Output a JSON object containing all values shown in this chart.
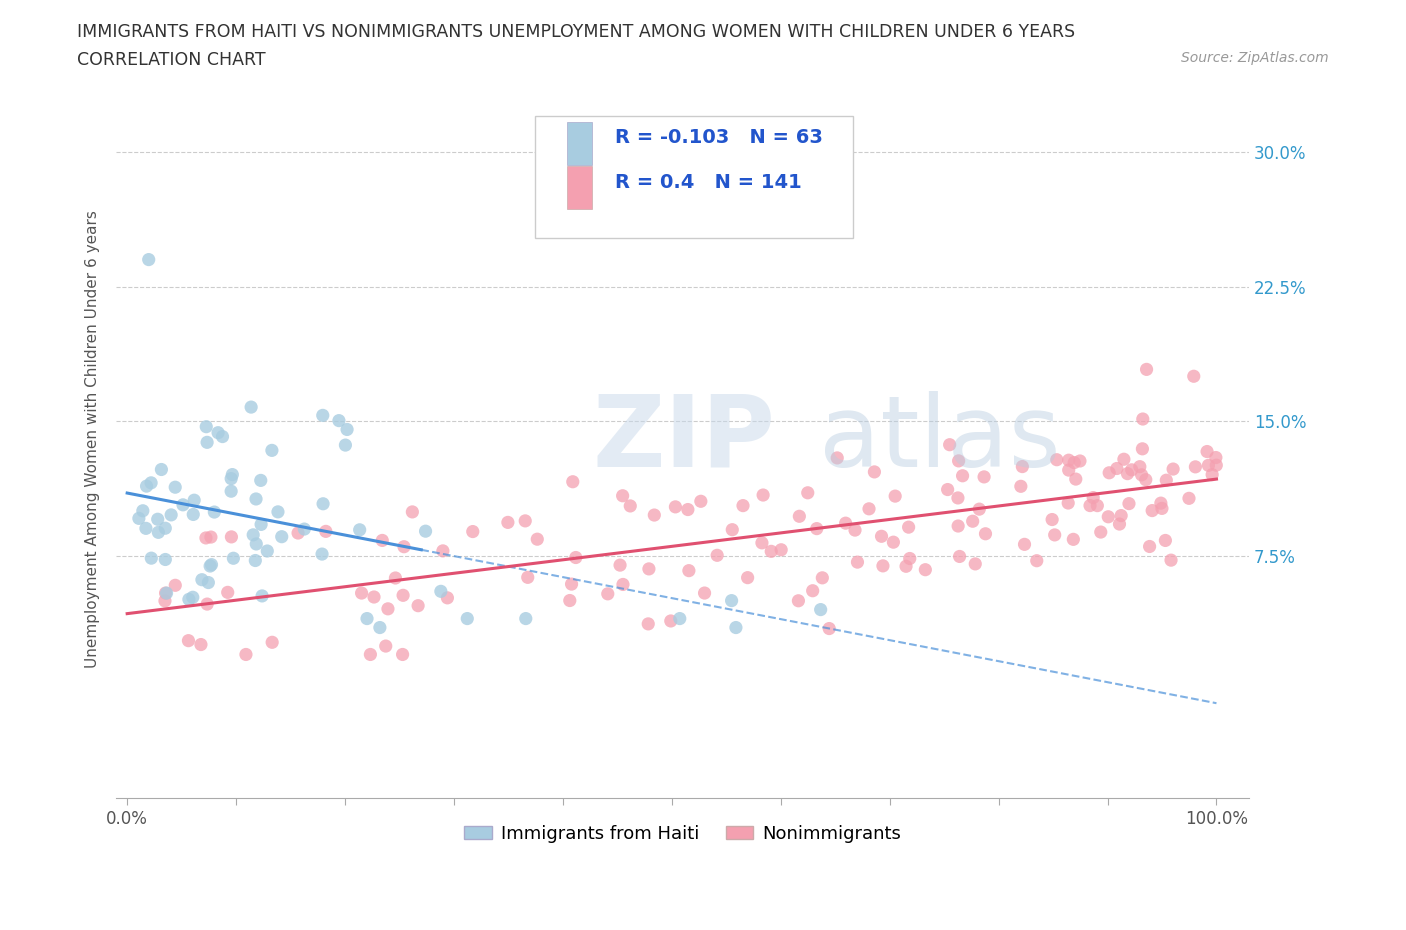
{
  "title_line1": "IMMIGRANTS FROM HAITI VS NONIMMIGRANTS UNEMPLOYMENT AMONG WOMEN WITH CHILDREN UNDER 6 YEARS",
  "title_line2": "CORRELATION CHART",
  "source": "Source: ZipAtlas.com",
  "ylabel": "Unemployment Among Women with Children Under 6 years",
  "haiti_R": -0.103,
  "haiti_N": 63,
  "nonimm_R": 0.4,
  "nonimm_N": 141,
  "haiti_color": "#a8cce0",
  "nonimm_color": "#f4a0b0",
  "haiti_line_color": "#4a90d9",
  "nonimm_line_color": "#e05070",
  "watermark_zip": "ZIP",
  "watermark_atlas": "atlas",
  "legend_haiti_label": "Immigrants from Haiti",
  "legend_nonimm_label": "Nonimmigrants",
  "ytick_vals": [
    0.075,
    0.15,
    0.225,
    0.3
  ],
  "ytick_labels": [
    "7.5%",
    "15.0%",
    "22.5%",
    "30.0%"
  ],
  "xlim": [
    -0.01,
    1.03
  ],
  "ylim": [
    -0.06,
    0.34
  ],
  "legend_text_color": "#2255cc",
  "title_color": "#333333",
  "source_color": "#999999"
}
